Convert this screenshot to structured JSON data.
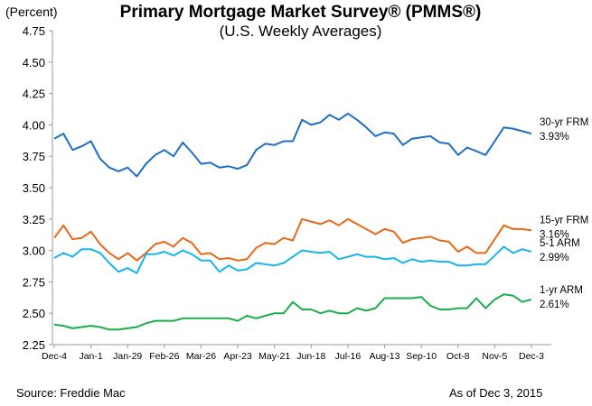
{
  "chart_data": {
    "type": "line",
    "title": "Primary Mortgage Market Survey® (PMMS®)",
    "subtitle": "(U.S. Weekly Averages)",
    "ylabel": "(Percent)",
    "xlabel": "",
    "ylim": [
      2.25,
      4.75
    ],
    "yticks": [
      "4.75",
      "4.50",
      "4.25",
      "4.00",
      "3.75",
      "3.50",
      "3.25",
      "3.00",
      "2.75",
      "2.50",
      "2.25"
    ],
    "xtick_labels": [
      "Dec-4",
      "Jan-1",
      "Jan-29",
      "Feb-26",
      "Mar-26",
      "Apr-23",
      "May-21",
      "Jun-18",
      "Jul-16",
      "Aug-13",
      "Sep-10",
      "Oct-8",
      "Nov-5",
      "Dec-3"
    ],
    "xtick_every_n_weeks": 4,
    "grid": false,
    "legend": "right, inline labels at line ends",
    "series": [
      {
        "name": "30-yr FRM",
        "end_label": "3.93%",
        "color": "#1f6fc5",
        "values": [
          3.89,
          3.93,
          3.8,
          3.83,
          3.87,
          3.73,
          3.66,
          3.63,
          3.66,
          3.59,
          3.69,
          3.76,
          3.8,
          3.75,
          3.86,
          3.78,
          3.69,
          3.7,
          3.66,
          3.67,
          3.65,
          3.68,
          3.8,
          3.85,
          3.84,
          3.87,
          3.87,
          4.04,
          4.0,
          4.02,
          4.08,
          4.04,
          4.09,
          4.04,
          3.98,
          3.91,
          3.94,
          3.93,
          3.84,
          3.89,
          3.9,
          3.91,
          3.86,
          3.85,
          3.76,
          3.82,
          3.79,
          3.76,
          3.87,
          3.98,
          3.97,
          3.95,
          3.93
        ]
      },
      {
        "name": "15-yr FRM",
        "end_label": "3.16%",
        "color": "#e8681a",
        "values": [
          3.1,
          3.2,
          3.09,
          3.1,
          3.15,
          3.05,
          2.98,
          2.93,
          2.98,
          2.92,
          2.98,
          3.05,
          3.07,
          3.03,
          3.1,
          3.06,
          2.97,
          2.98,
          2.93,
          2.94,
          2.92,
          2.93,
          3.02,
          3.06,
          3.05,
          3.1,
          3.08,
          3.25,
          3.23,
          3.21,
          3.24,
          3.2,
          3.25,
          3.21,
          3.17,
          3.13,
          3.17,
          3.15,
          3.06,
          3.09,
          3.1,
          3.11,
          3.08,
          3.07,
          2.99,
          3.03,
          2.98,
          2.98,
          3.09,
          3.2,
          3.17,
          3.17,
          3.16
        ]
      },
      {
        "name": "5-1 ARM",
        "end_label": "2.99%",
        "color": "#18b4ee",
        "values": [
          2.94,
          2.98,
          2.95,
          3.01,
          3.01,
          2.98,
          2.9,
          2.83,
          2.86,
          2.82,
          2.97,
          2.97,
          2.99,
          2.96,
          3.0,
          2.97,
          2.92,
          2.92,
          2.83,
          2.88,
          2.84,
          2.85,
          2.9,
          2.89,
          2.88,
          2.9,
          2.95,
          3.0,
          2.99,
          2.98,
          2.99,
          2.93,
          2.95,
          2.97,
          2.95,
          2.95,
          2.93,
          2.94,
          2.9,
          2.93,
          2.91,
          2.92,
          2.91,
          2.91,
          2.88,
          2.88,
          2.89,
          2.89,
          2.96,
          3.03,
          2.98,
          3.01,
          2.99
        ]
      },
      {
        "name": "1-yr ARM",
        "end_label": "2.61%",
        "color": "#1aae4a",
        "values": [
          2.41,
          2.4,
          2.38,
          2.39,
          2.4,
          2.39,
          2.37,
          2.37,
          2.38,
          2.39,
          2.42,
          2.44,
          2.44,
          2.44,
          2.46,
          2.46,
          2.46,
          2.46,
          2.46,
          2.46,
          2.44,
          2.48,
          2.46,
          2.48,
          2.5,
          2.5,
          2.59,
          2.53,
          2.53,
          2.5,
          2.52,
          2.5,
          2.5,
          2.54,
          2.52,
          2.54,
          2.62,
          2.62,
          2.62,
          2.62,
          2.63,
          2.56,
          2.53,
          2.53,
          2.54,
          2.54,
          2.62,
          2.54,
          2.61,
          2.65,
          2.64,
          2.59,
          2.61
        ]
      }
    ]
  },
  "footer": {
    "source": "Source: Freddie Mac",
    "as_of": "As of Dec 3, 2015"
  }
}
